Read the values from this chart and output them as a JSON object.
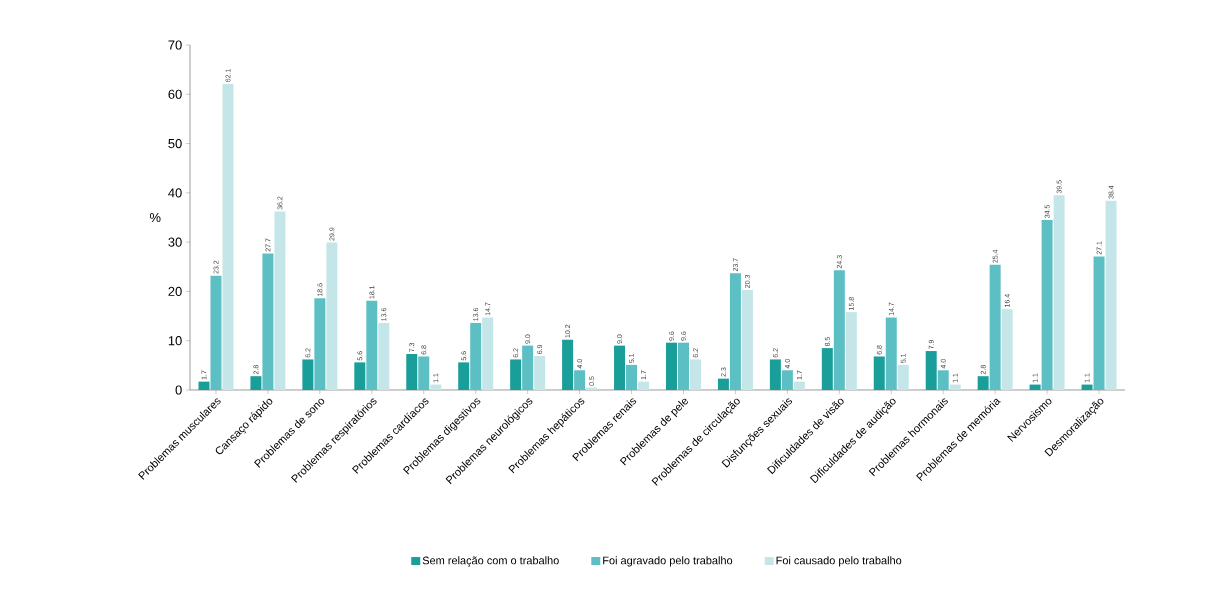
{
  "chart_data": {
    "type": "bar",
    "ylabel": "%",
    "categories": [
      "Problemas musculares",
      "Cansaço rápido",
      "Problemas de sono",
      "Problemas respiratórios",
      "Problemas cardíacos",
      "Problemas digestivos",
      "Problemas neurológicos",
      "Problemas hepáticos",
      "Problemas renais",
      "Problemas de pele",
      "Problemas de circulação",
      "Disfunções sexuais",
      "Dificuldades de visão",
      "Dificuldades de audição",
      "Problemas hormonais",
      "Problemas de memória",
      "Nervosismo",
      "Desmoralização"
    ],
    "series": [
      {
        "name": "Sem relação com o trabalho",
        "color": "#1a9e9a",
        "values": [
          1.7,
          2.8,
          6.2,
          5.6,
          7.3,
          5.6,
          6.2,
          10.2,
          9,
          9.6,
          2.3,
          6.2,
          8.5,
          6.8,
          7.9,
          2.8,
          1.1,
          1.1
        ],
        "value_labels": [
          "1.7",
          "2.8",
          "6.2",
          "5.6",
          "7.3",
          "5.6",
          "6.2",
          "10.2",
          "9.0",
          "9.6",
          "2.3",
          "6.2",
          "8.5",
          "6.8",
          "7.9",
          "2.8",
          "1.1",
          "1.1"
        ]
      },
      {
        "name": "Foi agravado pelo trabalho",
        "color": "#5bbfc4",
        "values": [
          23.2,
          27.7,
          18.6,
          18.1,
          6.8,
          13.6,
          9,
          4,
          5.1,
          9.6,
          23.7,
          4,
          24.3,
          14.7,
          4,
          25.4,
          34.5,
          27.1
        ],
        "value_labels": [
          "23.2",
          "27.7",
          "18.6",
          "18.1",
          "6.8",
          "13.6",
          "9.0",
          "4.0",
          "5.1",
          "9.6",
          "23.7",
          "4.0",
          "24.3",
          "14.7",
          "4.0",
          "25.4",
          "34.5",
          "27.1"
        ]
      },
      {
        "name": "Foi causado pelo trabalho",
        "color": "#c5e6e8",
        "values": [
          62.1,
          36.2,
          29.9,
          13.6,
          1.1,
          14.7,
          6.9,
          0.5,
          1.7,
          6.2,
          20.3,
          1.7,
          15.8,
          5.1,
          1.1,
          16.4,
          39.5,
          38.4
        ],
        "value_labels": [
          "62.1",
          "36.2",
          "29.9",
          "13.6",
          "1.1",
          "14.7",
          "6.9",
          "0.5",
          "1.7",
          "6.2",
          "20.3",
          "1.7",
          "15.8",
          "5.1",
          "1.1",
          "16.4",
          "39.5",
          "38.4"
        ]
      }
    ],
    "ylim": [
      0,
      70
    ],
    "yticks": [
      0,
      10,
      20,
      30,
      40,
      50,
      60,
      70
    ],
    "legend": "bottom",
    "grid": false
  }
}
